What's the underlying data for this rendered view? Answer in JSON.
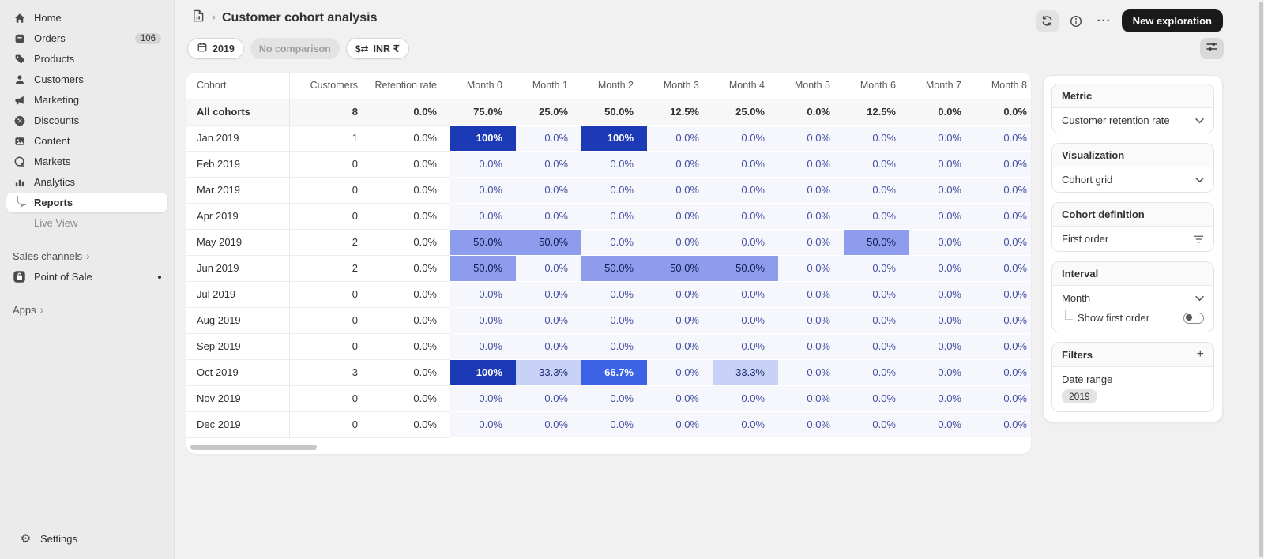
{
  "colors": {
    "heatmap_full": "#1c3ab5",
    "heatmap_bright": "#3c63e6",
    "heatmap_mid": "#8e9cee",
    "heatmap_light": "#c8d2f6",
    "heatmap_faint": "#f6f7fd",
    "sidebar_bg": "#ebebeb",
    "page_bg": "#f1f1f1",
    "primary_button_bg": "#1a1a1a"
  },
  "glyphs": {
    "gear": "⚙",
    "ellipsis": "···",
    "plus": "+",
    "chevron_right": "›",
    "currency": "$⇄"
  },
  "sidebar": {
    "items": [
      {
        "label": "Home",
        "icon": "home-icon"
      },
      {
        "label": "Orders",
        "icon": "orders-icon",
        "badge": "106"
      },
      {
        "label": "Products",
        "icon": "products-icon"
      },
      {
        "label": "Customers",
        "icon": "customers-icon"
      },
      {
        "label": "Marketing",
        "icon": "marketing-icon"
      },
      {
        "label": "Discounts",
        "icon": "discounts-icon"
      },
      {
        "label": "Content",
        "icon": "content-icon"
      },
      {
        "label": "Markets",
        "icon": "markets-icon"
      },
      {
        "label": "Analytics",
        "icon": "analytics-icon"
      }
    ],
    "reports_label": "Reports",
    "live_view_label": "Live View",
    "sales_channels_label": "Sales channels",
    "point_of_sale_label": "Point of Sale",
    "apps_label": "Apps",
    "settings_label": "Settings"
  },
  "header": {
    "title": "Customer cohort analysis",
    "new_exploration_label": "New exploration"
  },
  "filterbar": {
    "date_pill": "2019",
    "comparison_pill": "No comparison",
    "currency_pill": "INR ₹"
  },
  "table": {
    "columns": [
      "Cohort",
      "Customers",
      "Retention rate",
      "Month 0",
      "Month 1",
      "Month 2",
      "Month 3",
      "Month 4",
      "Month 5",
      "Month 6",
      "Month 7",
      "Month 8"
    ],
    "rows": [
      {
        "cohort": "All cohorts",
        "customers": "8",
        "retention": "0.0%",
        "summary": true,
        "months": [
          [
            "75.0%",
            "plain"
          ],
          [
            "25.0%",
            "plain"
          ],
          [
            "50.0%",
            "plain"
          ],
          [
            "12.5%",
            "plain"
          ],
          [
            "25.0%",
            "plain"
          ],
          [
            "0.0%",
            "plain"
          ],
          [
            "12.5%",
            "plain"
          ],
          [
            "0.0%",
            "plain"
          ],
          [
            "0.0%",
            "plain"
          ]
        ]
      },
      {
        "cohort": "Jan 2019",
        "customers": "1",
        "retention": "0.0%",
        "months": [
          [
            "100%",
            "full"
          ],
          [
            "0.0%",
            "zero"
          ],
          [
            "100%",
            "full"
          ],
          [
            "0.0%",
            "zero"
          ],
          [
            "0.0%",
            "zero"
          ],
          [
            "0.0%",
            "zero"
          ],
          [
            "0.0%",
            "zero"
          ],
          [
            "0.0%",
            "zero"
          ],
          [
            "0.0%",
            "zero"
          ]
        ]
      },
      {
        "cohort": "Feb 2019",
        "customers": "0",
        "retention": "0.0%",
        "months": [
          [
            "0.0%",
            "zero"
          ],
          [
            "0.0%",
            "zero"
          ],
          [
            "0.0%",
            "zero"
          ],
          [
            "0.0%",
            "zero"
          ],
          [
            "0.0%",
            "zero"
          ],
          [
            "0.0%",
            "zero"
          ],
          [
            "0.0%",
            "zero"
          ],
          [
            "0.0%",
            "zero"
          ],
          [
            "0.0%",
            "zero"
          ]
        ]
      },
      {
        "cohort": "Mar 2019",
        "customers": "0",
        "retention": "0.0%",
        "months": [
          [
            "0.0%",
            "zero"
          ],
          [
            "0.0%",
            "zero"
          ],
          [
            "0.0%",
            "zero"
          ],
          [
            "0.0%",
            "zero"
          ],
          [
            "0.0%",
            "zero"
          ],
          [
            "0.0%",
            "zero"
          ],
          [
            "0.0%",
            "zero"
          ],
          [
            "0.0%",
            "zero"
          ],
          [
            "0.0%",
            "zero"
          ]
        ]
      },
      {
        "cohort": "Apr 2019",
        "customers": "0",
        "retention": "0.0%",
        "months": [
          [
            "0.0%",
            "zero"
          ],
          [
            "0.0%",
            "zero"
          ],
          [
            "0.0%",
            "zero"
          ],
          [
            "0.0%",
            "zero"
          ],
          [
            "0.0%",
            "zero"
          ],
          [
            "0.0%",
            "zero"
          ],
          [
            "0.0%",
            "zero"
          ],
          [
            "0.0%",
            "zero"
          ],
          [
            "0.0%",
            "zero"
          ]
        ]
      },
      {
        "cohort": "May 2019",
        "customers": "2",
        "retention": "0.0%",
        "months": [
          [
            "50.0%",
            "l2"
          ],
          [
            "50.0%",
            "l2"
          ],
          [
            "0.0%",
            "zero"
          ],
          [
            "0.0%",
            "zero"
          ],
          [
            "0.0%",
            "zero"
          ],
          [
            "0.0%",
            "zero"
          ],
          [
            "50.0%",
            "l2"
          ],
          [
            "0.0%",
            "zero"
          ],
          [
            "0.0%",
            "zero"
          ]
        ]
      },
      {
        "cohort": "Jun 2019",
        "customers": "2",
        "retention": "0.0%",
        "months": [
          [
            "50.0%",
            "l2"
          ],
          [
            "0.0%",
            "zero"
          ],
          [
            "50.0%",
            "l2"
          ],
          [
            "50.0%",
            "l2"
          ],
          [
            "50.0%",
            "l2"
          ],
          [
            "0.0%",
            "zero"
          ],
          [
            "0.0%",
            "zero"
          ],
          [
            "0.0%",
            "zero"
          ],
          [
            "0.0%",
            "zero"
          ]
        ]
      },
      {
        "cohort": "Jul 2019",
        "customers": "0",
        "retention": "0.0%",
        "months": [
          [
            "0.0%",
            "zero"
          ],
          [
            "0.0%",
            "zero"
          ],
          [
            "0.0%",
            "zero"
          ],
          [
            "0.0%",
            "zero"
          ],
          [
            "0.0%",
            "zero"
          ],
          [
            "0.0%",
            "zero"
          ],
          [
            "0.0%",
            "zero"
          ],
          [
            "0.0%",
            "zero"
          ],
          [
            "0.0%",
            "zero"
          ]
        ]
      },
      {
        "cohort": "Aug 2019",
        "customers": "0",
        "retention": "0.0%",
        "months": [
          [
            "0.0%",
            "zero"
          ],
          [
            "0.0%",
            "zero"
          ],
          [
            "0.0%",
            "zero"
          ],
          [
            "0.0%",
            "zero"
          ],
          [
            "0.0%",
            "zero"
          ],
          [
            "0.0%",
            "zero"
          ],
          [
            "0.0%",
            "zero"
          ],
          [
            "0.0%",
            "zero"
          ],
          [
            "0.0%",
            "zero"
          ]
        ]
      },
      {
        "cohort": "Sep 2019",
        "customers": "0",
        "retention": "0.0%",
        "months": [
          [
            "0.0%",
            "zero"
          ],
          [
            "0.0%",
            "zero"
          ],
          [
            "0.0%",
            "zero"
          ],
          [
            "0.0%",
            "zero"
          ],
          [
            "0.0%",
            "zero"
          ],
          [
            "0.0%",
            "zero"
          ],
          [
            "0.0%",
            "zero"
          ],
          [
            "0.0%",
            "zero"
          ],
          [
            "0.0%",
            "zero"
          ]
        ]
      },
      {
        "cohort": "Oct 2019",
        "customers": "3",
        "retention": "0.0%",
        "months": [
          [
            "100%",
            "full"
          ],
          [
            "33.3%",
            "l1"
          ],
          [
            "66.7%",
            "l3"
          ],
          [
            "0.0%",
            "zero"
          ],
          [
            "33.3%",
            "l1"
          ],
          [
            "0.0%",
            "zero"
          ],
          [
            "0.0%",
            "zero"
          ],
          [
            "0.0%",
            "zero"
          ],
          [
            "0.0%",
            "zero"
          ]
        ]
      },
      {
        "cohort": "Nov 2019",
        "customers": "0",
        "retention": "0.0%",
        "months": [
          [
            "0.0%",
            "zero"
          ],
          [
            "0.0%",
            "zero"
          ],
          [
            "0.0%",
            "zero"
          ],
          [
            "0.0%",
            "zero"
          ],
          [
            "0.0%",
            "zero"
          ],
          [
            "0.0%",
            "zero"
          ],
          [
            "0.0%",
            "zero"
          ],
          [
            "0.0%",
            "zero"
          ],
          [
            "0.0%",
            "zero"
          ]
        ]
      },
      {
        "cohort": "Dec 2019",
        "customers": "0",
        "retention": "0.0%",
        "months": [
          [
            "0.0%",
            "zero"
          ],
          [
            "0.0%",
            "zero"
          ],
          [
            "0.0%",
            "zero"
          ],
          [
            "0.0%",
            "zero"
          ],
          [
            "0.0%",
            "zero"
          ],
          [
            "0.0%",
            "zero"
          ],
          [
            "0.0%",
            "zero"
          ],
          [
            "0.0%",
            "zero"
          ],
          [
            "0.0%",
            "zero"
          ]
        ]
      }
    ]
  },
  "panel": {
    "metric": {
      "title": "Metric",
      "value": "Customer retention rate"
    },
    "visualization": {
      "title": "Visualization",
      "value": "Cohort grid"
    },
    "cohort_definition": {
      "title": "Cohort definition",
      "value": "First order"
    },
    "interval": {
      "title": "Interval",
      "value": "Month",
      "sub_label": "Show first order",
      "toggle_on": false
    },
    "filters": {
      "title": "Filters",
      "date_range_label": "Date range",
      "chips": [
        "2019"
      ]
    }
  }
}
